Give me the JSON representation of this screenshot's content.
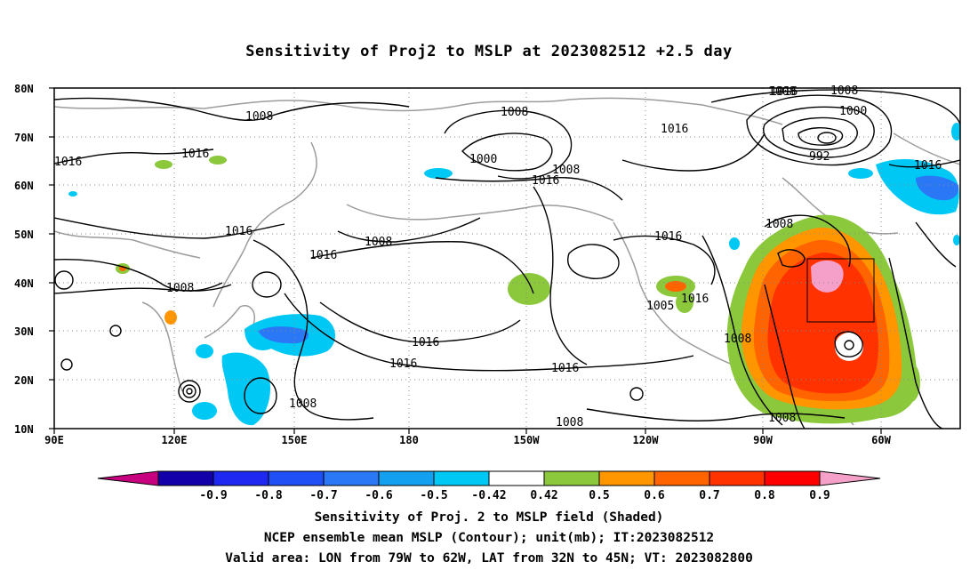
{
  "title": "Sensitivity of Proj2 to MSLP at 2023082512 +2.5 day",
  "map": {
    "lat_labels": [
      "80N",
      "70N",
      "60N",
      "50N",
      "40N",
      "30N",
      "20N",
      "10N"
    ],
    "lon_labels": [
      "90E",
      "120E",
      "150E",
      "180",
      "150W",
      "120W",
      "90W",
      "60W"
    ],
    "contour_labels": [
      {
        "text": "1008"
      },
      {
        "text": "1016"
      },
      {
        "text": "1016"
      },
      {
        "text": "1008"
      },
      {
        "text": "1016"
      },
      {
        "text": "1008"
      },
      {
        "text": "1000"
      },
      {
        "text": "1008"
      },
      {
        "text": "1016"
      },
      {
        "text": "1008"
      },
      {
        "text": "1016"
      },
      {
        "text": "1016"
      },
      {
        "text": "1016"
      },
      {
        "text": "1008"
      },
      {
        "text": "1008"
      },
      {
        "text": "1016"
      },
      {
        "text": "1005"
      },
      {
        "text": "1016"
      },
      {
        "text": "1008"
      },
      {
        "text": "1008"
      },
      {
        "text": "1008"
      },
      {
        "text": "1000"
      },
      {
        "text": "992"
      },
      {
        "text": "1016"
      },
      {
        "text": "1008"
      },
      {
        "text": "1016"
      },
      {
        "text": "1016"
      },
      {
        "text": "1008"
      },
      {
        "text": "1016"
      }
    ],
    "valid_box": {
      "lon_from": "79W",
      "lon_to": "62W",
      "lat_from": "32N",
      "lat_to": "45N"
    }
  },
  "colorbar": {
    "labels": [
      "-0.9",
      "-0.8",
      "-0.7",
      "-0.6",
      "-0.5",
      "-0.42",
      "0.42",
      "0.5",
      "0.6",
      "0.7",
      "0.8",
      "0.9"
    ],
    "colors": [
      "#c6007e",
      "#1400a8",
      "#1e28f0",
      "#1f50f5",
      "#2a78f5",
      "#14a0f0",
      "#00c8f5",
      "#ffffff",
      "#8cc83c",
      "#ff9600",
      "#ff6400",
      "#ff3200",
      "#ff0000",
      "#f5a0c8"
    ]
  },
  "captions": [
    "Sensitivity of Proj. 2 to MSLP field (Shaded)",
    "NCEP ensemble mean MSLP (Contour); unit(mb); IT:2023082512",
    "Valid area: LON from 79W to 62W, LAT from 32N to 45N; VT: 2023082800"
  ]
}
